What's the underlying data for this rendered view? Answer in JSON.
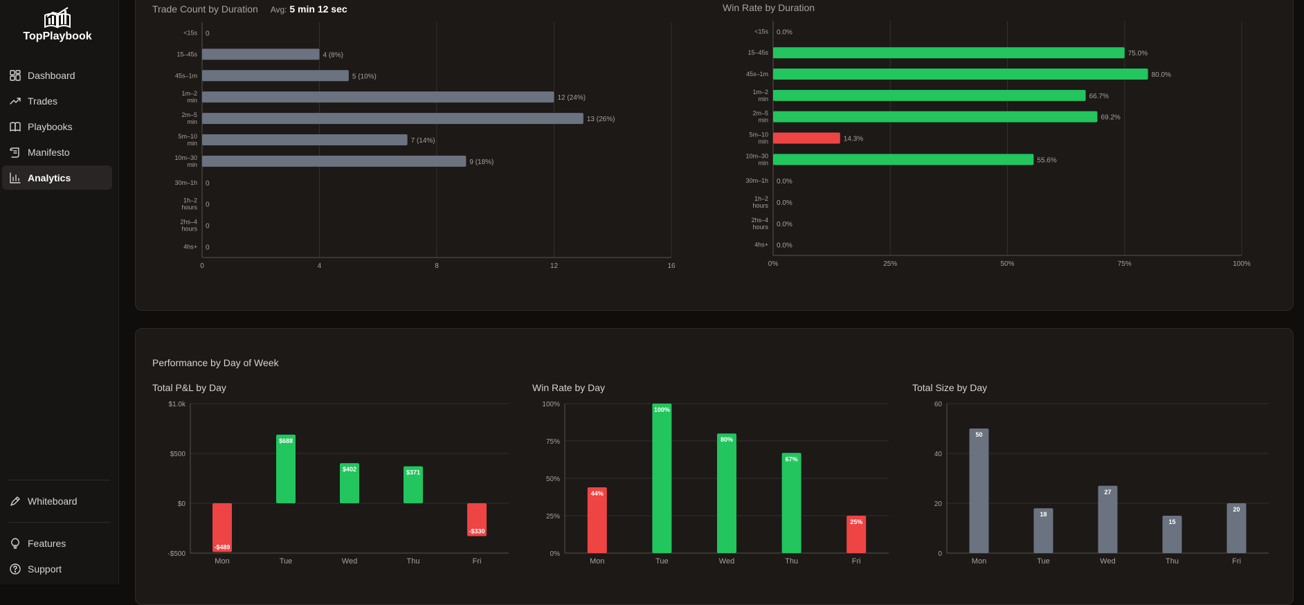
{
  "app": {
    "name": "TopPlaybook"
  },
  "nav": {
    "items": [
      {
        "label": "Dashboard",
        "icon": "dashboard-icon"
      },
      {
        "label": "Trades",
        "icon": "trending-icon"
      },
      {
        "label": "Playbooks",
        "icon": "book-icon"
      },
      {
        "label": "Manifesto",
        "icon": "scroll-icon"
      },
      {
        "label": "Analytics",
        "icon": "bar-chart-icon",
        "active": true
      }
    ],
    "bottom": [
      {
        "label": "Whiteboard",
        "icon": "pen-icon"
      },
      {
        "label": "Features",
        "icon": "lightbulb-icon"
      },
      {
        "label": "Support",
        "icon": "help-icon"
      }
    ]
  },
  "colors": {
    "green": "#22c55e",
    "red": "#ef4444",
    "gray": "#6b7280",
    "grid": "#34302d"
  },
  "top_panel": {
    "trade_count_title": "Trade Count by Duration",
    "avg_label": "Avg:",
    "avg_value": "5 min 12 sec",
    "win_rate_title": "Win Rate by Duration"
  },
  "bottom_panel": {
    "section_title": "Performance by Day of Week"
  },
  "chart_data": [
    {
      "id": "trade_count_by_duration",
      "type": "bar",
      "orientation": "horizontal",
      "title": "Trade Count by Duration",
      "categories": [
        "<15s",
        "15–45s",
        "45s–1m",
        "1m–2 min",
        "2m–5 min",
        "5m–10 min",
        "10m–30 min",
        "30m–1h",
        "1h–2 hours",
        "2hs–4 hours",
        "4hs+"
      ],
      "values": [
        0,
        4,
        5,
        12,
        13,
        7,
        9,
        0,
        0,
        0,
        0
      ],
      "labels": [
        "0",
        "4 (8%)",
        "5 (10%)",
        "12 (24%)",
        "13 (26%)",
        "7 (14%)",
        "9 (18%)",
        "0",
        "0",
        "0",
        "0"
      ],
      "xlim": [
        0,
        16
      ],
      "xticks": [
        "0",
        "4",
        "8",
        "12",
        "16"
      ],
      "color": "#6b7280"
    },
    {
      "id": "win_rate_by_duration",
      "type": "bar",
      "orientation": "horizontal",
      "title": "Win Rate by Duration",
      "categories": [
        "<15s",
        "15–45s",
        "45s–1m",
        "1m–2 min",
        "2m–5 min",
        "5m–10 min",
        "10m–30 min",
        "30m–1h",
        "1h–2 hours",
        "2hs–4 hours",
        "4hs+"
      ],
      "values": [
        0,
        75.0,
        80.0,
        66.7,
        69.2,
        14.3,
        55.6,
        0,
        0,
        0,
        0
      ],
      "labels": [
        "0.0%",
        "75.0%",
        "80.0%",
        "66.7%",
        "69.2%",
        "14.3%",
        "55.6%",
        "0.0%",
        "0.0%",
        "0.0%",
        "0.0%"
      ],
      "xlim": [
        0,
        100
      ],
      "xticks": [
        "0%",
        "25%",
        "50%",
        "75%",
        "100%"
      ],
      "threshold": 50
    },
    {
      "id": "total_pnl_by_day",
      "type": "bar",
      "title": "Total P&L by Day",
      "categories": [
        "Mon",
        "Tue",
        "Wed",
        "Thu",
        "Fri"
      ],
      "values": [
        -489,
        688,
        402,
        371,
        -330
      ],
      "labels": [
        "-$489",
        "$688",
        "$402",
        "$371",
        "-$330"
      ],
      "ylim": [
        -500,
        1000
      ],
      "yticks": [
        "$1.0k",
        "$500",
        "$0",
        "-$500"
      ]
    },
    {
      "id": "win_rate_by_day",
      "type": "bar",
      "title": "Win Rate by Day",
      "categories": [
        "Mon",
        "Tue",
        "Wed",
        "Thu",
        "Fri"
      ],
      "values": [
        44,
        100,
        80,
        67,
        25
      ],
      "labels": [
        "44%",
        "100%",
        "80%",
        "67%",
        "25%"
      ],
      "ylim": [
        0,
        100
      ],
      "yticks": [
        "100%",
        "75%",
        "50%",
        "25%",
        "0%"
      ],
      "threshold": 50
    },
    {
      "id": "total_size_by_day",
      "type": "bar",
      "title": "Total Size by Day",
      "categories": [
        "Mon",
        "Tue",
        "Wed",
        "Thu",
        "Fri"
      ],
      "values": [
        50,
        18,
        27,
        15,
        20
      ],
      "labels": [
        "50",
        "18",
        "27",
        "15",
        "20"
      ],
      "ylim": [
        0,
        60
      ],
      "yticks": [
        "60",
        "40",
        "20",
        "0"
      ],
      "color": "#6b7280"
    }
  ]
}
